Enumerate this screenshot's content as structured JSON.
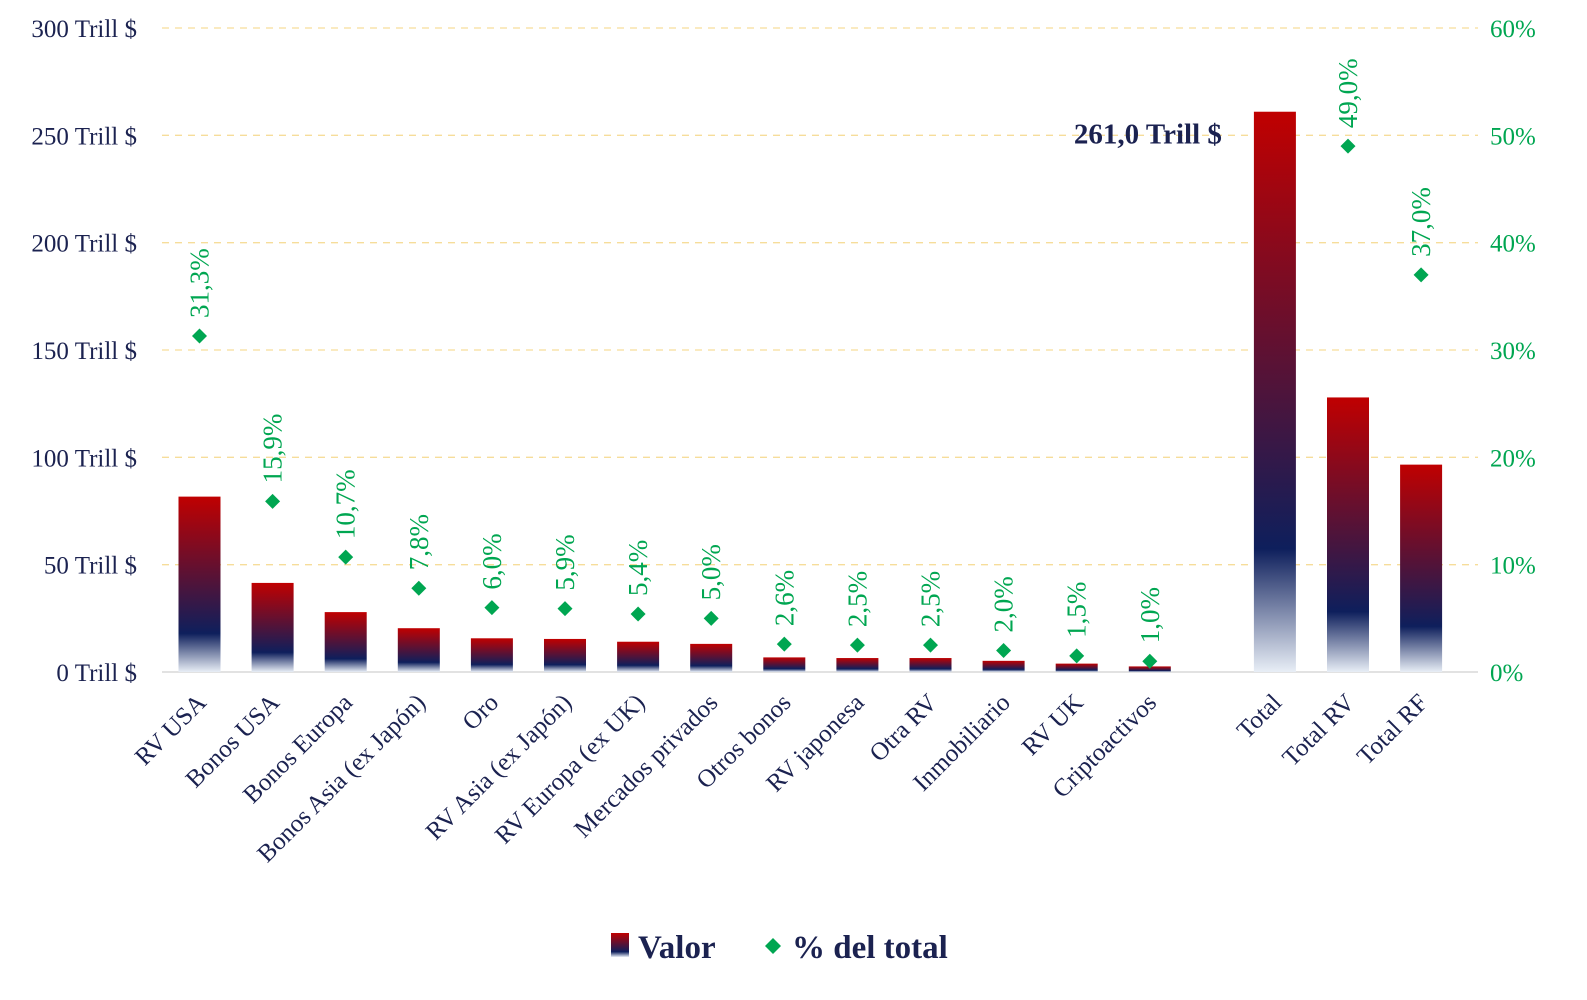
{
  "chart_data": {
    "type": "bar",
    "categories": [
      "RV USA",
      "Bonos USA",
      "Bonos Europa",
      "Bonos Asia (ex Japón)",
      "Oro",
      "RV Asia (ex Japón)",
      "RV Europa (ex UK)",
      "Mercados privados",
      "Otros bonos",
      "RV japonesa",
      "Otra RV",
      "Inmobiliario",
      "RV UK",
      "Criptoactivos",
      "Total",
      "Total RV",
      "Total RF"
    ],
    "series": [
      {
        "name": "Valor",
        "axis": "left",
        "kind": "bar",
        "values": [
          81.7,
          41.5,
          27.9,
          20.4,
          15.7,
          15.4,
          14.1,
          13.1,
          6.8,
          6.5,
          6.5,
          5.2,
          3.9,
          2.6,
          261.0,
          127.9,
          96.6
        ]
      },
      {
        "name": "% del total",
        "axis": "right",
        "kind": "scatter",
        "values": [
          31.3,
          15.9,
          10.7,
          7.8,
          6.0,
          5.9,
          5.4,
          5.0,
          2.6,
          2.5,
          2.5,
          2.0,
          1.5,
          1.0,
          null,
          49.0,
          37.0
        ],
        "labels": [
          "31,3%",
          "15,9%",
          "10,7%",
          "7,8%",
          "6,0%",
          "5,9%",
          "5,4%",
          "5,0%",
          "2,6%",
          "2,5%",
          "2,5%",
          "2,0%",
          "1,5%",
          "1,0%",
          "",
          "49,0%",
          "37,0%"
        ]
      }
    ],
    "y_left": {
      "range": [
        0,
        300
      ],
      "ticks": [
        0,
        50,
        100,
        150,
        200,
        250,
        300
      ],
      "tick_labels": [
        "0 Trill $",
        "50 Trill $",
        "100 Trill $",
        "150 Trill $",
        "200 Trill $",
        "250 Trill $",
        "300 Trill $"
      ]
    },
    "y_right": {
      "range": [
        0,
        60
      ],
      "ticks": [
        0,
        10,
        20,
        30,
        40,
        50,
        60
      ],
      "tick_labels": [
        "0%",
        "10%",
        "20%",
        "30%",
        "40%",
        "50%",
        "60%"
      ]
    },
    "annotation": {
      "category": "Total",
      "text": "261,0 Trill $"
    },
    "legend": {
      "position": "bottom-center",
      "items": [
        {
          "label": "Valor",
          "marker": "bar-gradient"
        },
        {
          "label": "% del total",
          "marker": "diamond"
        }
      ]
    },
    "grid": true,
    "title": "",
    "xlabel": "",
    "ylabel": ""
  },
  "colors": {
    "bar_top": "#c00000",
    "bar_mid": "#0e1f5c",
    "bar_bottom": "#e8eef6",
    "marker": "#00a651",
    "axis_text": "#1b2250",
    "pct_text": "#00a651",
    "gridline": "#f6dd9a"
  }
}
